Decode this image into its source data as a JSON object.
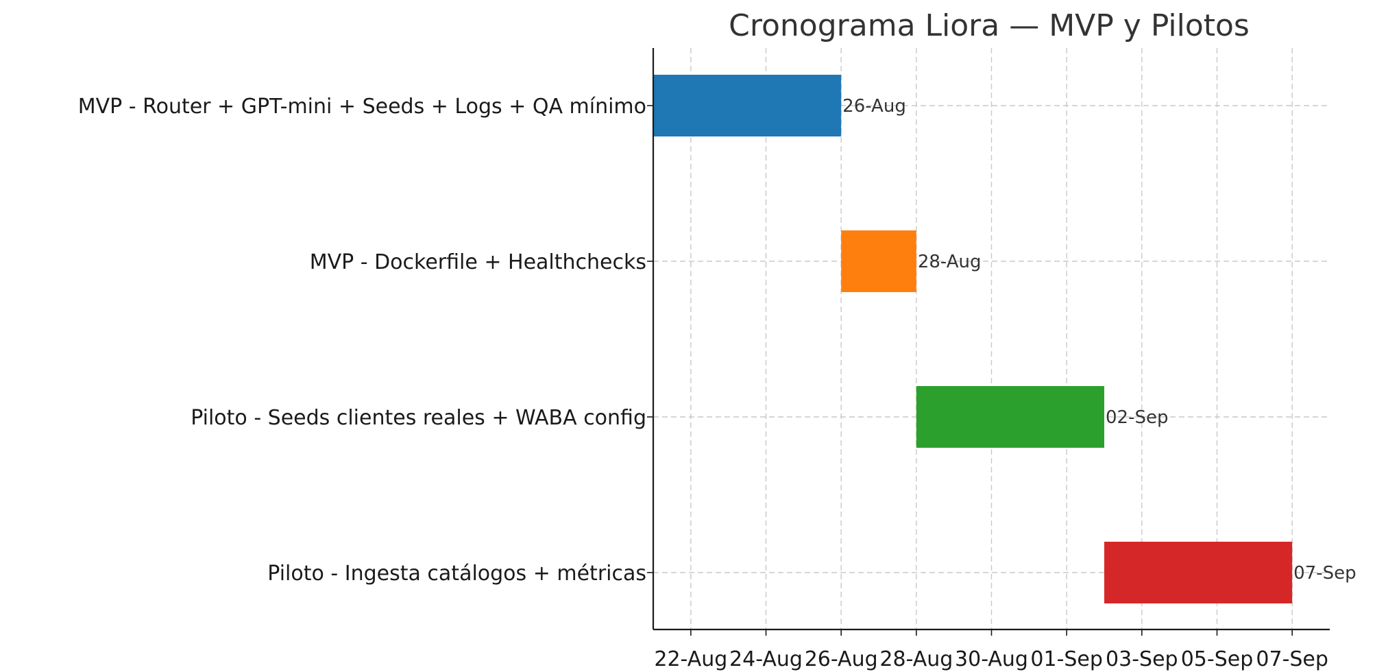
{
  "chart_data": {
    "type": "gantt",
    "title": "Cronograma Liora — MVP y Pilotos",
    "xlabel": "",
    "ylabel": "",
    "grid": true,
    "x_ticks": [
      "22-Aug",
      "24-Aug",
      "26-Aug",
      "28-Aug",
      "30-Aug",
      "01-Sep",
      "03-Sep",
      "05-Sep",
      "07-Sep"
    ],
    "x_tick_dates": [
      "2025-08-22",
      "2025-08-24",
      "2025-08-26",
      "2025-08-28",
      "2025-08-30",
      "2025-09-01",
      "2025-09-03",
      "2025-09-05",
      "2025-09-07"
    ],
    "xlim": [
      "2025-08-21",
      "2025-09-08"
    ],
    "tasks": [
      {
        "name": "MVP - Router + GPT-mini + Seeds + Logs + QA mínimo",
        "start": "2025-08-21",
        "end": "2025-08-26",
        "end_label": "26-Aug",
        "color": "#1f77b4"
      },
      {
        "name": "MVP - Dockerfile + Healthchecks",
        "start": "2025-08-26",
        "end": "2025-08-28",
        "end_label": "28-Aug",
        "color": "#ff7f0e"
      },
      {
        "name": "Piloto - Seeds clientes reales + WABA config",
        "start": "2025-08-28",
        "end": "2025-09-02",
        "end_label": "02-Sep",
        "color": "#2ca02c"
      },
      {
        "name": "Piloto - Ingesta catálogos + métricas",
        "start": "2025-09-02",
        "end": "2025-09-07",
        "end_label": "07-Sep",
        "color": "#d62728"
      }
    ]
  }
}
